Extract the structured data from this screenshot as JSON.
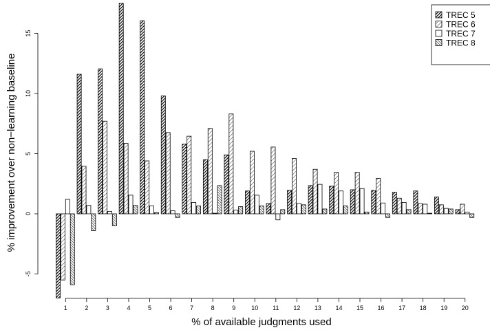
{
  "chart_data": {
    "type": "bar",
    "xlabel": "% of available judgments used",
    "ylabel": "% improvement over non−learning baseline",
    "ylim": [
      -7,
      17.5
    ],
    "yticks": [
      -5,
      0,
      5,
      10,
      15
    ],
    "categories": [
      "1",
      "2",
      "3",
      "4",
      "5",
      "6",
      "7",
      "8",
      "9",
      "10",
      "11",
      "12",
      "13",
      "14",
      "15",
      "16",
      "17",
      "18",
      "19",
      "20"
    ],
    "legend_position": "top-right",
    "series": [
      {
        "name": "TREC 5",
        "pattern": "dense-dark",
        "values": [
          -7.0,
          11.6,
          12.05,
          17.5,
          16.05,
          9.8,
          5.8,
          4.5,
          4.9,
          1.9,
          0.85,
          1.95,
          2.35,
          2.3,
          2.0,
          1.95,
          1.8,
          1.9,
          1.4,
          0.35
        ]
      },
      {
        "name": "TREC 6",
        "pattern": "light-hatch",
        "values": [
          -5.5,
          3.95,
          7.7,
          5.85,
          4.4,
          6.75,
          6.45,
          7.1,
          8.3,
          5.2,
          5.55,
          4.6,
          3.7,
          3.45,
          3.45,
          2.95,
          1.3,
          0.85,
          0.75,
          0.8
        ]
      },
      {
        "name": "TREC 7",
        "pattern": "empty",
        "values": [
          1.2,
          0.7,
          0.2,
          1.55,
          0.65,
          0.25,
          0.95,
          0.05,
          0.3,
          1.55,
          -0.5,
          0.85,
          2.45,
          1.9,
          2.1,
          0.9,
          0.95,
          0.8,
          0.45,
          0.15
        ]
      },
      {
        "name": "TREC 8",
        "pattern": "medium-hatch",
        "values": [
          -5.9,
          -1.4,
          -1.0,
          0.7,
          0.1,
          -0.3,
          0.65,
          2.35,
          0.6,
          0.65,
          0.35,
          0.75,
          0.4,
          0.65,
          0.15,
          -0.3,
          0.35,
          0.05,
          0.4,
          -0.3
        ]
      }
    ]
  }
}
